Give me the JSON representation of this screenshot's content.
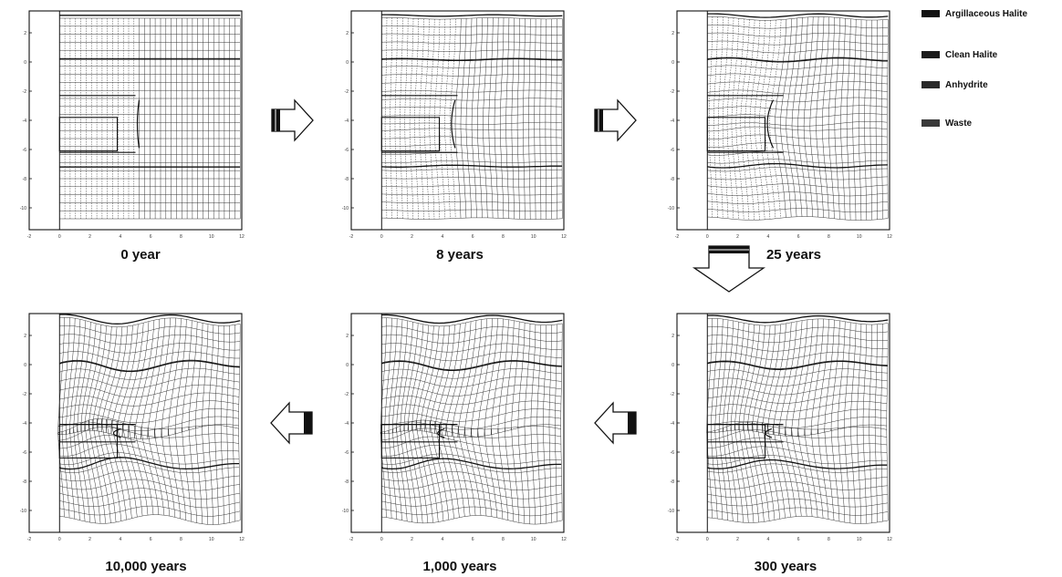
{
  "figure": {
    "panels": [
      {
        "id": "p1",
        "time": "0 year",
        "stage": 0
      },
      {
        "id": "p2",
        "time": "8 years",
        "stage": 1
      },
      {
        "id": "p3",
        "time": "25 years",
        "stage": 2
      },
      {
        "id": "p4",
        "time": "300 years",
        "stage": 3
      },
      {
        "id": "p5",
        "time": "1,000 years",
        "stage": 4
      },
      {
        "id": "p6",
        "time": "10,000 years",
        "stage": 5
      }
    ],
    "axes": {
      "x_ticks": [
        "-2",
        "0",
        "2",
        "4",
        "6",
        "8",
        "10",
        "12"
      ],
      "y_ticks": [
        "2",
        "0",
        "-2",
        "-4",
        "-6",
        "-8",
        "-10"
      ]
    },
    "legend": [
      {
        "label": "Argillaceous Halite",
        "color": "#111111"
      },
      {
        "label": "Clean Halite",
        "color": "#1c1c1c"
      },
      {
        "label": "Anhydrite",
        "color": "#2a2a2a"
      },
      {
        "label": "Waste",
        "color": "#3a3a3a"
      }
    ]
  }
}
